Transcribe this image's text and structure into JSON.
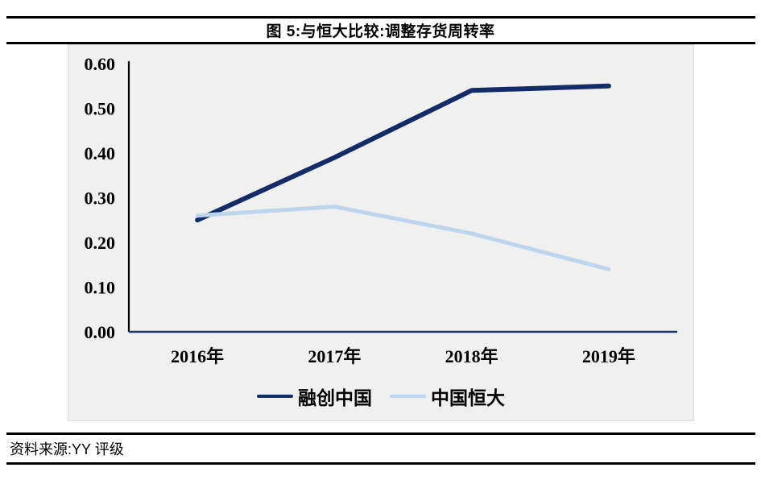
{
  "figure": {
    "title": "图 5:与恒大比较:调整存货周转率"
  },
  "source": {
    "text": "资料来源:YY 评级"
  },
  "colors": {
    "accent_dark_navy": "#132B66",
    "accent_light_blue": "#BDD6ED",
    "axis": "#000000",
    "baseline": "#1B3568",
    "panel_bg": "#F0F0F0",
    "rule": "#000000"
  },
  "chart_data": {
    "type": "line",
    "title": "图 5:与恒大比较:调整存货周转率",
    "categories": [
      "2016年",
      "2017年",
      "2018年",
      "2019年"
    ],
    "series": [
      {
        "name": "融创中国",
        "color": "#132B66",
        "values": [
          0.25,
          0.39,
          0.54,
          0.55
        ]
      },
      {
        "name": "中国恒大",
        "color": "#BDD6ED",
        "values": [
          0.26,
          0.28,
          0.22,
          0.14
        ]
      }
    ],
    "xlabel": "",
    "ylabel": "",
    "ylim": [
      0.0,
      0.6
    ],
    "ytick_labels": [
      "0.00",
      "0.10",
      "0.20",
      "0.30",
      "0.40",
      "0.50",
      "0.60"
    ],
    "grid": false,
    "legend_position": "bottom"
  }
}
